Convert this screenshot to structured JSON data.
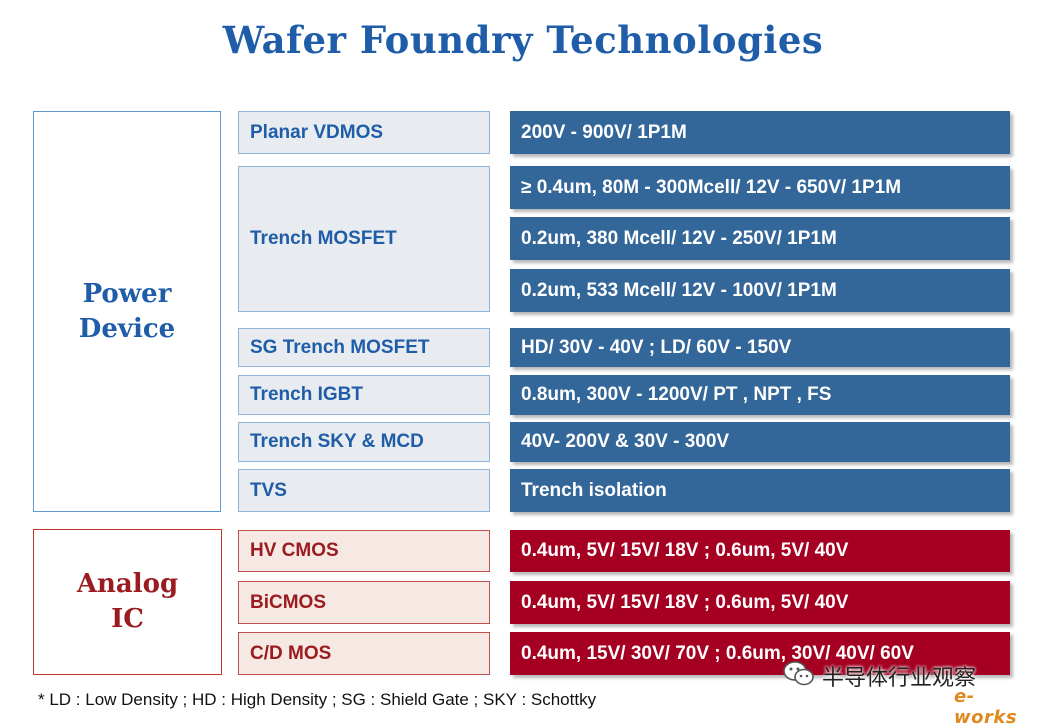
{
  "title": "Wafer Foundry Technologies",
  "groups": [
    {
      "label": "Power\nDevice",
      "color": "#1f5da8"
    },
    {
      "label": "Analog\nIC",
      "color": "#9b1c20"
    }
  ],
  "technologies": [
    {
      "name": "Planar VDMOS",
      "specs": [
        "200V - 900V/ 1P1M"
      ]
    },
    {
      "name": "Trench MOSFET",
      "specs": [
        "≥ 0.4um, 80M - 300Mcell/ 12V - 650V/ 1P1M",
        "0.2um, 380 Mcell/ 12V - 250V/ 1P1M",
        "0.2um, 533 Mcell/ 12V - 100V/ 1P1M"
      ]
    },
    {
      "name": "SG Trench MOSFET",
      "specs": [
        "HD/ 30V - 40V ; LD/ 60V - 150V"
      ]
    },
    {
      "name": "Trench IGBT",
      "specs": [
        "0.8um, 300V - 1200V/ PT , NPT , FS"
      ]
    },
    {
      "name": "Trench SKY & MCD",
      "specs": [
        "40V- 200V & 30V - 300V"
      ]
    },
    {
      "name": "TVS",
      "specs": [
        "Trench isolation"
      ]
    },
    {
      "name": "HV CMOS",
      "specs": [
        "0.4um, 5V/ 15V/ 18V ; 0.6um, 5V/ 40V"
      ]
    },
    {
      "name": "BiCMOS",
      "specs": [
        "0.4um, 5V/ 15V/ 18V ; 0.6um, 5V/ 40V"
      ]
    },
    {
      "name": "C/D MOS",
      "specs": [
        "0.4um, 15V/ 30V/ 70V ; 0.6um, 30V/ 40V/ 60V"
      ]
    }
  ],
  "footnote": "* LD : Low Density ; HD : High Density ; SG : Shield Gate ; SKY : Schottky",
  "watermark": {
    "text": "半导体行业观察",
    "logo": "e-works",
    "icon": "wechat-icon"
  },
  "colors": {
    "power_bar": "#336699",
    "analog_bar": "#a50021",
    "power_text": "#1f5da8",
    "analog_text": "#9b1c20"
  }
}
